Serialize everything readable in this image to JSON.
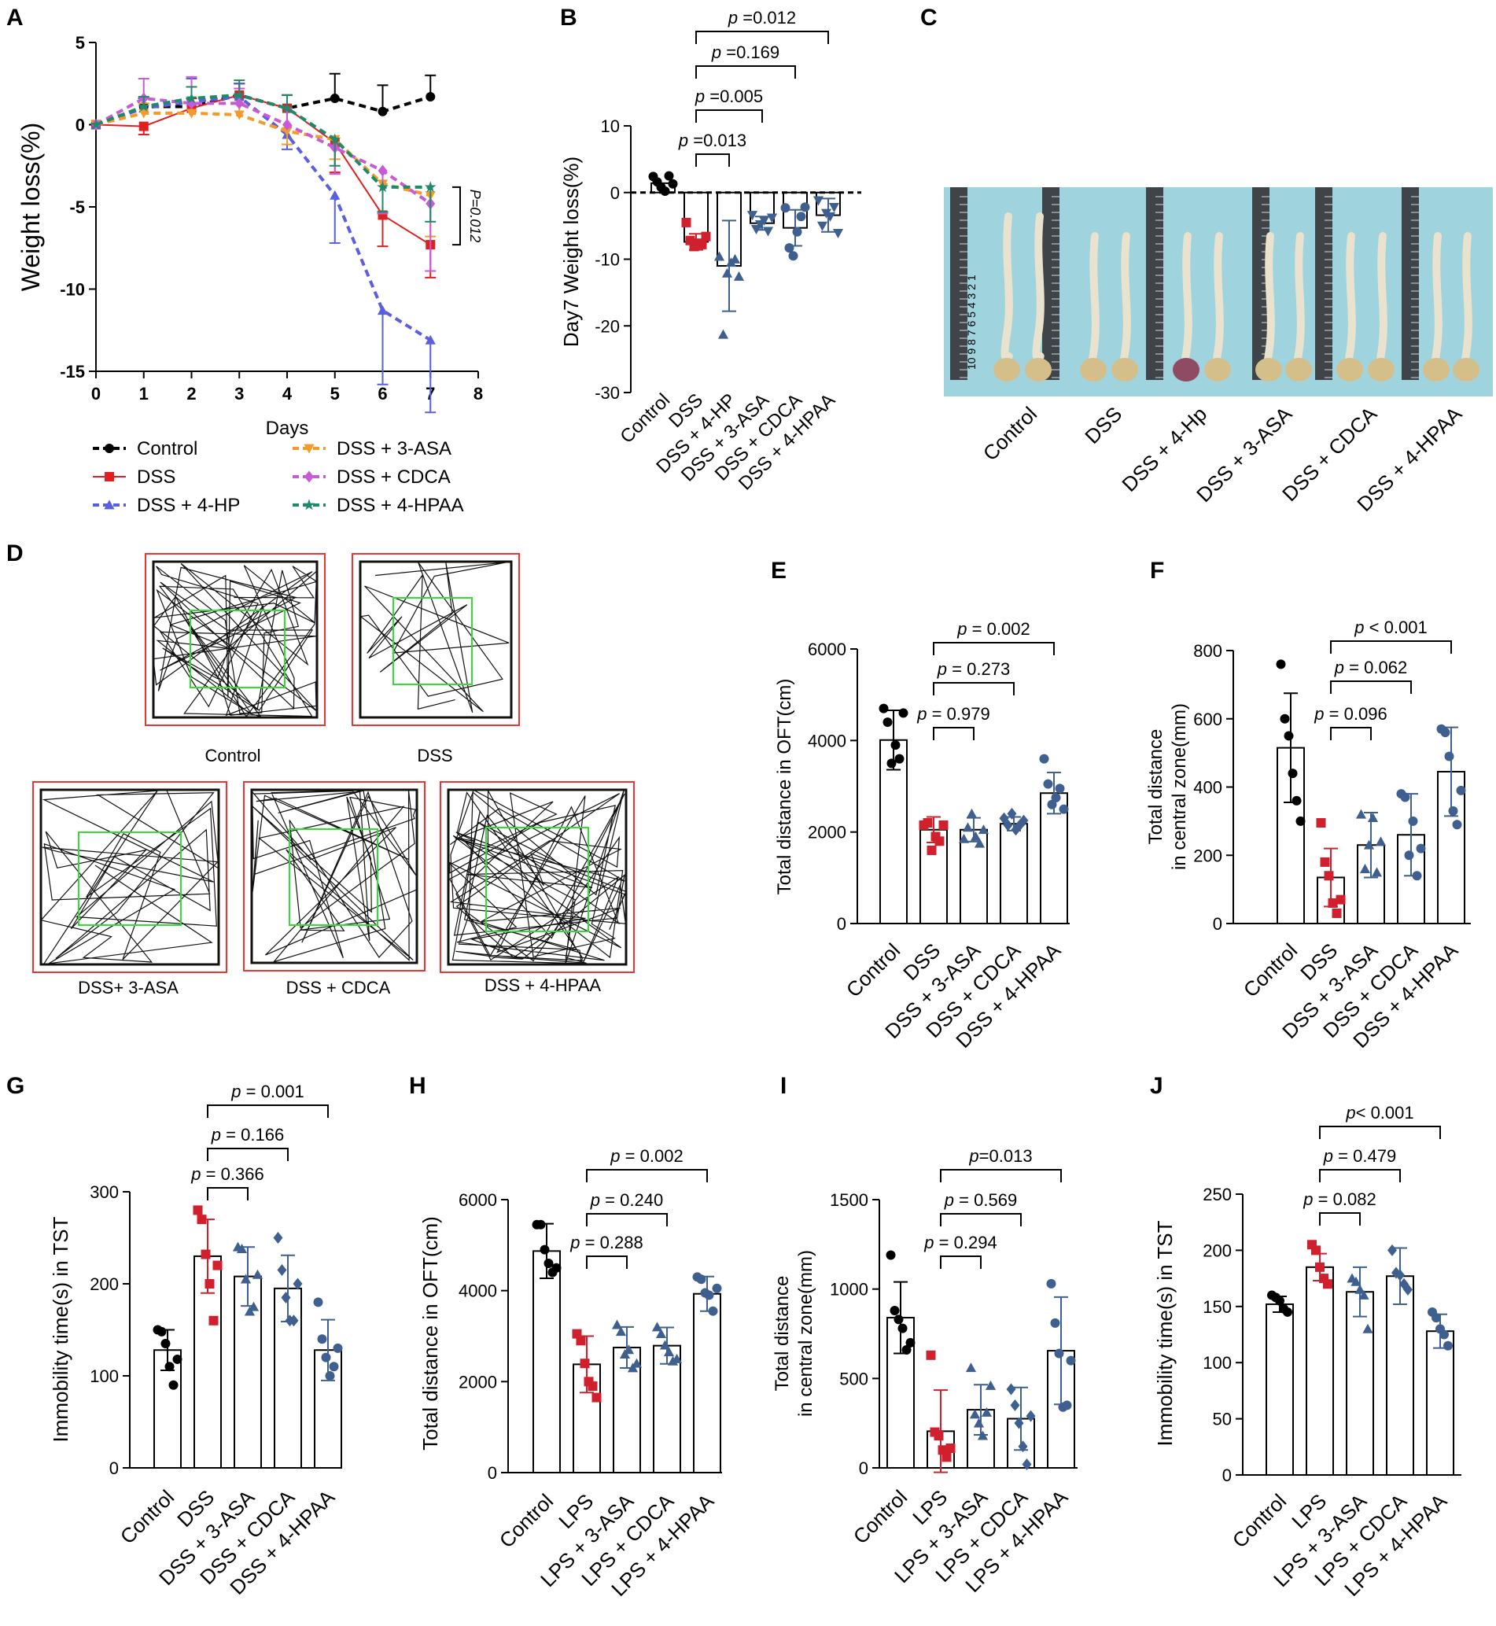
{
  "panels": {
    "A": {
      "letter": "A",
      "chart_data": {
        "type": "line",
        "ylabel": "Weight loss(%)",
        "xlabel": "Days",
        "x": [
          0,
          1,
          2,
          3,
          4,
          5,
          6,
          7
        ],
        "xticks": [
          "0",
          "1",
          "2",
          "3",
          "4",
          "5",
          "6",
          "7",
          "8"
        ],
        "xlim": [
          0,
          8
        ],
        "ylim": [
          -15,
          5
        ],
        "yticks": [
          "5",
          "0",
          "-5",
          "-10",
          "-15"
        ],
        "annotation": "P=0.012",
        "series": [
          {
            "name": "Control",
            "color": "#000000",
            "marker": "circle",
            "values": [
              0,
              1.1,
              1.1,
              1.8,
              1.0,
              1.6,
              0.8,
              1.7
            ],
            "err": [
              0,
              0.5,
              0.5,
              0.7,
              0.8,
              1.5,
              1.6,
              1.3
            ]
          },
          {
            "name": "DSS",
            "color": "#e02020",
            "marker": "square",
            "values": [
              0,
              -0.1,
              1.0,
              1.8,
              1.0,
              -1.1,
              -5.5,
              -7.3
            ],
            "err": [
              0,
              0.5,
              0.6,
              0.7,
              0.8,
              1.8,
              1.9,
              2.0
            ]
          },
          {
            "name": "DSS + 4-HP",
            "color": "#5a5ee0",
            "marker": "triangle",
            "values": [
              0,
              1.0,
              1.4,
              1.7,
              -0.6,
              -4.3,
              -11.3,
              -13.1
            ],
            "err": [
              0,
              0.6,
              1.4,
              0.8,
              0.9,
              2.9,
              4.5,
              4.4
            ]
          },
          {
            "name": "DSS + 3-ASA",
            "color": "#f39a2a",
            "marker": "tridown",
            "values": [
              0,
              0.7,
              0.7,
              0.6,
              -0.4,
              -0.9,
              -3.6,
              -4.3
            ],
            "err": [
              0,
              0.6,
              0.6,
              0.7,
              0.8,
              1.2,
              1.8,
              2.5
            ]
          },
          {
            "name": "DSS + CDCA",
            "color": "#c85ad6",
            "marker": "diamond",
            "values": [
              0,
              1.6,
              1.3,
              1.3,
              0.0,
              -1.4,
              -2.8,
              -4.8
            ],
            "err": [
              0,
              1.2,
              1.6,
              0.9,
              1.0,
              1.6,
              2.6,
              4.1
            ]
          },
          {
            "name": "DSS + 4-HPAA",
            "color": "#1e8a6a",
            "marker": "star",
            "values": [
              0,
              1.1,
              1.6,
              1.8,
              1.0,
              -0.9,
              -3.8,
              -3.8
            ],
            "err": [
              0,
              0.6,
              0.7,
              0.9,
              0.8,
              1.6,
              1.5,
              2.1
            ]
          }
        ]
      }
    },
    "B": {
      "letter": "B",
      "chart_data": {
        "type": "bar",
        "ylabel": "Day7 Weight loss(%)",
        "categories": [
          "Control",
          "DSS",
          "DSS + 4-HP",
          "DSS + 3-ASA",
          "DSS + CDCA",
          "DSS + 4-HPAA"
        ],
        "ylim": [
          -30,
          10
        ],
        "yticks": [
          "10",
          "0",
          "-10",
          "-20",
          "-30"
        ],
        "values": [
          1.4,
          -7.4,
          -11.0,
          -4.6,
          -5.3,
          -3.4
        ],
        "err": [
          0,
          1.2,
          6.8,
          1.0,
          2.7,
          2.5
        ],
        "points": [
          [
            2.4,
            1.6,
            0.8,
            0.2,
            2.5,
            1.3
          ],
          [
            -4.5,
            -7.2,
            -8.1,
            -7.6,
            -7.8,
            -6.6
          ],
          [
            -9.6,
            -21.3,
            -12.1,
            -10.5,
            -10.0,
            -12.6
          ],
          [
            -3.4,
            -5.5,
            -4.8,
            -4.2,
            -5.8,
            -3.8
          ],
          [
            -2.3,
            -8.3,
            -9.5,
            -5.9,
            -3.6,
            -2.2
          ],
          [
            -1.2,
            -5.0,
            -3.1,
            -3.6,
            -2.2,
            -6.1
          ]
        ],
        "comparisons": [
          [
            "p =0.013",
            1,
            2
          ],
          [
            "p =0.005",
            1,
            3
          ],
          [
            "p =0.169",
            1,
            4
          ],
          [
            "p =0.012",
            1,
            5
          ]
        ]
      }
    },
    "C": {
      "letter": "C",
      "groups": [
        "Control",
        "DSS",
        "DSS + 4-Hp",
        "DSS + 3-ASA",
        "DSS + CDCA",
        "DSS + 4-HPAA"
      ],
      "ruler_labels": "10 9 8 7 6 5 4 3 2 1"
    },
    "D": {
      "letter": "D",
      "labels": [
        "Control",
        "DSS",
        "DSS+ 3-ASA",
        "DSS + CDCA",
        "DSS + 4-HPAA"
      ]
    },
    "E": {
      "letter": "E",
      "chart_data": {
        "type": "bar",
        "ylabel": "Total distance in OFT(cm)",
        "categories": [
          "Control",
          "DSS",
          "DSS + 3-ASA",
          "DSS + CDCA",
          "DSS + 4-HPAA"
        ],
        "ylim": [
          0,
          6000
        ],
        "yticks": [
          "6000",
          "4000",
          "2000",
          "0"
        ],
        "values": [
          4010,
          2050,
          2050,
          2180,
          2850
        ],
        "err": [
          650,
          280,
          260,
          150,
          450
        ],
        "points": [
          [
            4700,
            4400,
            3500,
            3900,
            3600,
            4600
          ],
          [
            2150,
            2200,
            1600,
            1900,
            1800,
            2150
          ],
          [
            1850,
            2100,
            2400,
            1900,
            1750,
            2050
          ],
          [
            2300,
            2150,
            2400,
            2050,
            2150,
            2250
          ],
          [
            3600,
            3050,
            2600,
            2750,
            2950,
            2500
          ]
        ],
        "comparisons": [
          [
            "p = 0.979",
            1,
            2
          ],
          [
            "p = 0.273",
            1,
            3
          ],
          [
            "p = 0.002",
            1,
            4
          ]
        ]
      }
    },
    "F": {
      "letter": "F",
      "chart_data": {
        "type": "bar",
        "ylabel": "Total distance",
        "ylabel2": "in central zone(mm)",
        "categories": [
          "Control",
          "DSS",
          "DSS + 3-ASA",
          "DSS + CDCA",
          "DSS + 4-HPAA"
        ],
        "ylim": [
          0,
          800
        ],
        "yticks": [
          "800",
          "600",
          "400",
          "200",
          "0"
        ],
        "values": [
          515,
          135,
          230,
          260,
          445
        ],
        "err": [
          160,
          85,
          95,
          120,
          130
        ],
        "points": [
          [
            760,
            600,
            550,
            440,
            360,
            300
          ],
          [
            295,
            180,
            140,
            60,
            30,
            70
          ],
          [
            320,
            160,
            230,
            310,
            150,
            240
          ],
          [
            380,
            370,
            200,
            300,
            140,
            220
          ],
          [
            570,
            560,
            490,
            330,
            290,
            390
          ]
        ],
        "comparisons": [
          [
            "p = 0.096",
            1,
            2
          ],
          [
            "p = 0.062",
            1,
            3
          ],
          [
            "p < 0.001",
            1,
            4
          ]
        ]
      }
    },
    "G": {
      "letter": "G",
      "chart_data": {
        "type": "bar",
        "ylabel": "Immobility time(s) in TST",
        "categories": [
          "Control",
          "DSS",
          "DSS + 3-ASA",
          "DSS + CDCA",
          "DSS + 4-HPAA"
        ],
        "ylim": [
          0,
          300
        ],
        "yticks": [
          "300",
          "200",
          "100",
          "0"
        ],
        "values": [
          128,
          230,
          208,
          195,
          128
        ],
        "err": [
          22,
          40,
          32,
          36,
          33
        ],
        "points": [
          [
            150,
            148,
            135,
            110,
            90,
            118
          ],
          [
            280,
            270,
            232,
            200,
            160,
            220
          ],
          [
            240,
            238,
            205,
            170,
            175,
            210
          ],
          [
            250,
            215,
            185,
            160,
            160,
            200
          ],
          [
            180,
            140,
            120,
            100,
            110,
            130
          ]
        ],
        "comparisons": [
          [
            "p = 0.366",
            1,
            2
          ],
          [
            "p = 0.166",
            1,
            3
          ],
          [
            "p = 0.001",
            1,
            4
          ]
        ]
      }
    },
    "H": {
      "letter": "H",
      "chart_data": {
        "type": "bar",
        "ylabel": "Total distance in OFT(cm)",
        "categories": [
          "Control",
          "LPS",
          "LPS + 3-ASA",
          "LPS + CDCA",
          "LPS + 4-HPAA"
        ],
        "ylim": [
          0,
          6000
        ],
        "yticks": [
          "6000",
          "4000",
          "2000",
          "0"
        ],
        "values": [
          4870,
          2380,
          2750,
          2790,
          3930
        ],
        "err": [
          600,
          620,
          450,
          400,
          380
        ],
        "points": [
          [
            5450,
            5450,
            4900,
            4600,
            4400,
            4500
          ],
          [
            3050,
            2900,
            2400,
            2000,
            1900,
            1650
          ],
          [
            3250,
            3100,
            2600,
            2700,
            2300,
            2400
          ],
          [
            3200,
            3050,
            2800,
            2650,
            2450,
            2500
          ],
          [
            4300,
            4250,
            3950,
            3900,
            3550,
            4050
          ]
        ],
        "comparisons": [
          [
            "p = 0.288",
            1,
            2
          ],
          [
            "p = 0.240",
            1,
            3
          ],
          [
            "p = 0.002",
            1,
            4
          ]
        ]
      }
    },
    "I": {
      "letter": "I",
      "chart_data": {
        "type": "bar",
        "ylabel": "Total distance",
        "ylabel2": "in central zone(mm)",
        "categories": [
          "Control",
          "LPS",
          "LPS + 3-ASA",
          "LPS + CDCA",
          "LPS + 4-HPAA"
        ],
        "ylim": [
          0,
          1500
        ],
        "yticks": [
          "1500",
          "1000",
          "500",
          "0"
        ],
        "values": [
          840,
          205,
          325,
          275,
          655
        ],
        "err": [
          200,
          230,
          140,
          175,
          300
        ],
        "points": [
          [
            1190,
            880,
            830,
            780,
            660,
            700
          ],
          [
            630,
            200,
            180,
            100,
            60,
            110
          ],
          [
            560,
            300,
            250,
            180,
            310,
            460
          ],
          [
            440,
            350,
            250,
            120,
            20,
            290
          ],
          [
            1030,
            810,
            640,
            340,
            350,
            600
          ]
        ],
        "comparisons": [
          [
            "p = 0.294",
            1,
            2
          ],
          [
            "p = 0.569",
            1,
            3
          ],
          [
            "p=0.013",
            1,
            4
          ]
        ]
      }
    },
    "J": {
      "letter": "J",
      "chart_data": {
        "type": "bar",
        "ylabel": "Immobility time(s) in TST",
        "categories": [
          "Control",
          "LPS",
          "LPS + 3-ASA",
          "LPS + CDCA",
          "LPS + 4-HPAA"
        ],
        "ylim": [
          0,
          250
        ],
        "yticks": [
          "250",
          "200",
          "150",
          "100",
          "50",
          "0"
        ],
        "values": [
          152,
          185,
          163,
          177,
          128
        ],
        "err": [
          7,
          12,
          22,
          25,
          15
        ],
        "points": [
          [
            160,
            158,
            155,
            148,
            145
          ],
          [
            205,
            200,
            185,
            175,
            170
          ],
          [
            175,
            172,
            165,
            160,
            130
          ],
          [
            200,
            180,
            178,
            170,
            165
          ],
          [
            145,
            140,
            130,
            125,
            115
          ]
        ],
        "comparisons": [
          [
            "p = 0.082",
            1,
            2
          ],
          [
            "p = 0.479",
            1,
            3
          ],
          [
            "p< 0.001",
            1,
            4
          ]
        ]
      }
    }
  }
}
